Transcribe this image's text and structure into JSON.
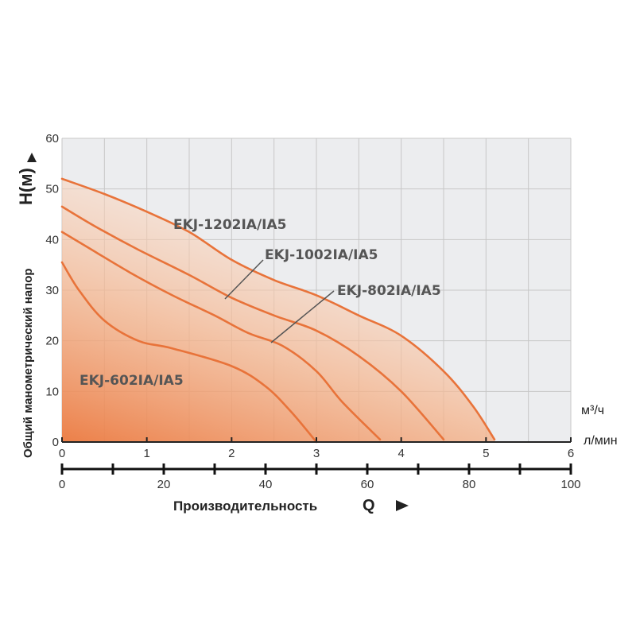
{
  "chart_data": {
    "type": "line",
    "ylabel": "Общий манометрический напор",
    "ylabel_symbol": "H(м)",
    "xlabel": "Производительность",
    "xlabel_symbol": "Q",
    "x_units": [
      "м³/ч",
      "л/мин"
    ],
    "xlim": [
      0,
      6
    ],
    "ylim": [
      0,
      60
    ],
    "x_ticks": [
      "0",
      "1",
      "2",
      "3",
      "4",
      "5",
      "6"
    ],
    "x2_ticks": [
      "0",
      "20",
      "40",
      "60",
      "80",
      "100"
    ],
    "y_ticks": [
      "0",
      "10",
      "20",
      "30",
      "40",
      "50",
      "60"
    ],
    "grid": true,
    "series": [
      {
        "name": "EKJ-602IA/IA5",
        "x": [
          0,
          0.2,
          0.5,
          0.9,
          1.3,
          2.0,
          2.4,
          2.7,
          3.0
        ],
        "y": [
          35.5,
          30,
          24,
          20,
          18.5,
          15,
          11,
          6,
          0
        ]
      },
      {
        "name": "EKJ-802IA/IA5",
        "x": [
          0,
          0.3,
          0.8,
          1.3,
          1.8,
          2.2,
          2.6,
          3.0,
          3.3,
          3.75
        ],
        "y": [
          41.5,
          38.5,
          33.5,
          29,
          25,
          21.5,
          19,
          14,
          8,
          0.5
        ]
      },
      {
        "name": "EKJ-1002IA/IA5",
        "x": [
          0,
          0.4,
          0.9,
          1.5,
          2.0,
          2.5,
          3.0,
          3.5,
          4.0,
          4.5
        ],
        "y": [
          46.5,
          42.5,
          38,
          33,
          28.5,
          25,
          22,
          17,
          10,
          0.5
        ]
      },
      {
        "name": "EKJ-1202IA/IA5",
        "x": [
          0,
          0.5,
          1.0,
          1.5,
          2.0,
          2.5,
          3.0,
          3.5,
          4.0,
          4.5,
          4.85,
          5.1
        ],
        "y": [
          52,
          49,
          45.5,
          41.5,
          36,
          32,
          29,
          25,
          21,
          14,
          7,
          0.5
        ]
      }
    ],
    "labels": [
      {
        "text": "EKJ-1202IA/IA5",
        "series": "EKJ-1202IA/IA5"
      },
      {
        "text": "EKJ-1002IA/IA5",
        "series": "EKJ-1002IA/IA5"
      },
      {
        "text": "EKJ-802IA/IA5",
        "series": "EKJ-802IA/IA5"
      },
      {
        "text": "EKJ-602IA/IA5",
        "series": "EKJ-602IA/IA5"
      }
    ],
    "colors": {
      "curve": "#e8733a",
      "fill_strong": "#ef8d58",
      "fill_light": "#fbe3d2",
      "plot_bg": "#ecedef",
      "grid": "#c7c7c7"
    }
  }
}
